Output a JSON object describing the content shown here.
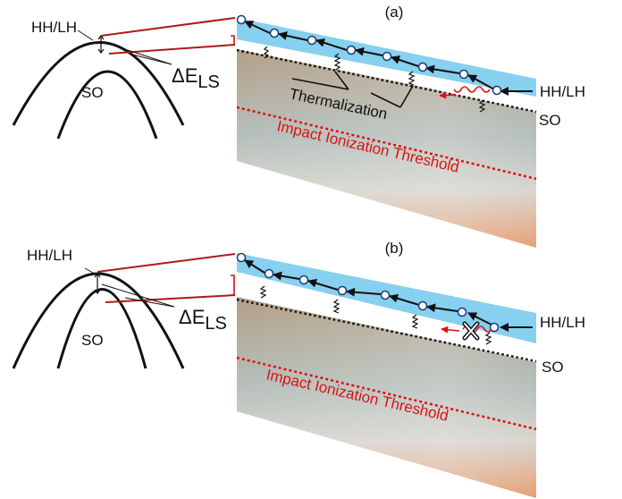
{
  "panels": [
    {
      "label": "(a)",
      "hh_lh_left": "HH/LH",
      "so_left": "SO",
      "delta_prefix": "ΔE",
      "delta_sub": "LS",
      "hh_lh_right": "HH/LH",
      "so_right": "SO",
      "thermalization": "Thermalization",
      "threshold": "Impact Ionization Threshold"
    },
    {
      "label": "(b)",
      "hh_lh_left": "HH/LH",
      "so_left": "SO",
      "delta_prefix": "ΔE",
      "delta_sub": "LS",
      "hh_lh_right": "HH/LH",
      "so_right": "SO",
      "threshold": "Impact Ionization Threshold"
    }
  ],
  "colors": {
    "band": "#87d0f0",
    "band_edge": "#1a4a8c",
    "threshold": "#dd1111",
    "connector": "#b01818",
    "arrow": "#111111"
  }
}
